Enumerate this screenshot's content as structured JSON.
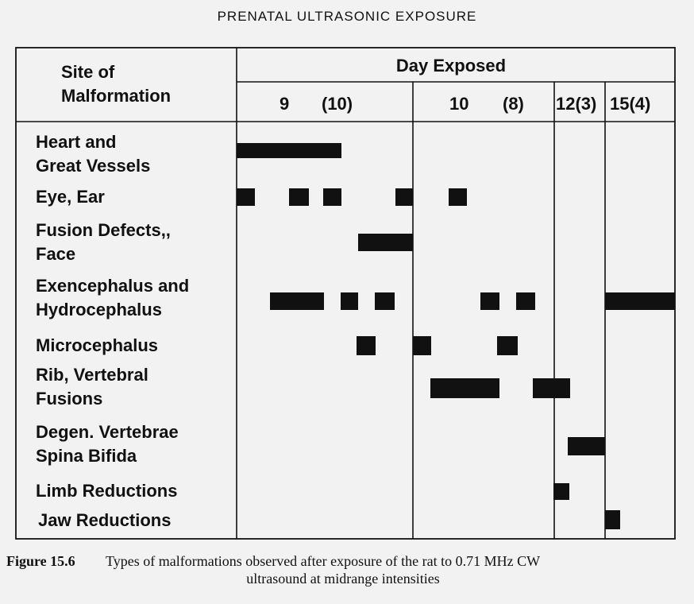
{
  "title": "PRENATAL ULTRASONIC EXPOSURE",
  "table": {
    "row_header": [
      "Site of",
      "Malformation"
    ],
    "column_header": "Day Exposed",
    "columns": [
      "9",
      "(10)",
      "10",
      "(8)",
      "12(3)",
      "15(4)"
    ],
    "rows": [
      [
        "Heart and",
        "Great Vessels"
      ],
      [
        "Eye, Ear"
      ],
      [
        "Fusion Defects,,",
        "Face"
      ],
      [
        "Exencephalus and",
        "Hydrocephalus"
      ],
      [
        "Microcephalus"
      ],
      [
        "Rib, Vertebral",
        "Fusions"
      ],
      [
        "Degen. Vertebrae",
        "Spina Bifida"
      ],
      [
        "Limb Reductions"
      ],
      [
        "Jaw Reductions"
      ]
    ]
  },
  "caption": {
    "label": "Figure 15.6",
    "lines": [
      "Types of malformations observed after exposure of the rat to 0.71 MHz CW",
      "ultrasound at midrange intensities"
    ]
  }
}
